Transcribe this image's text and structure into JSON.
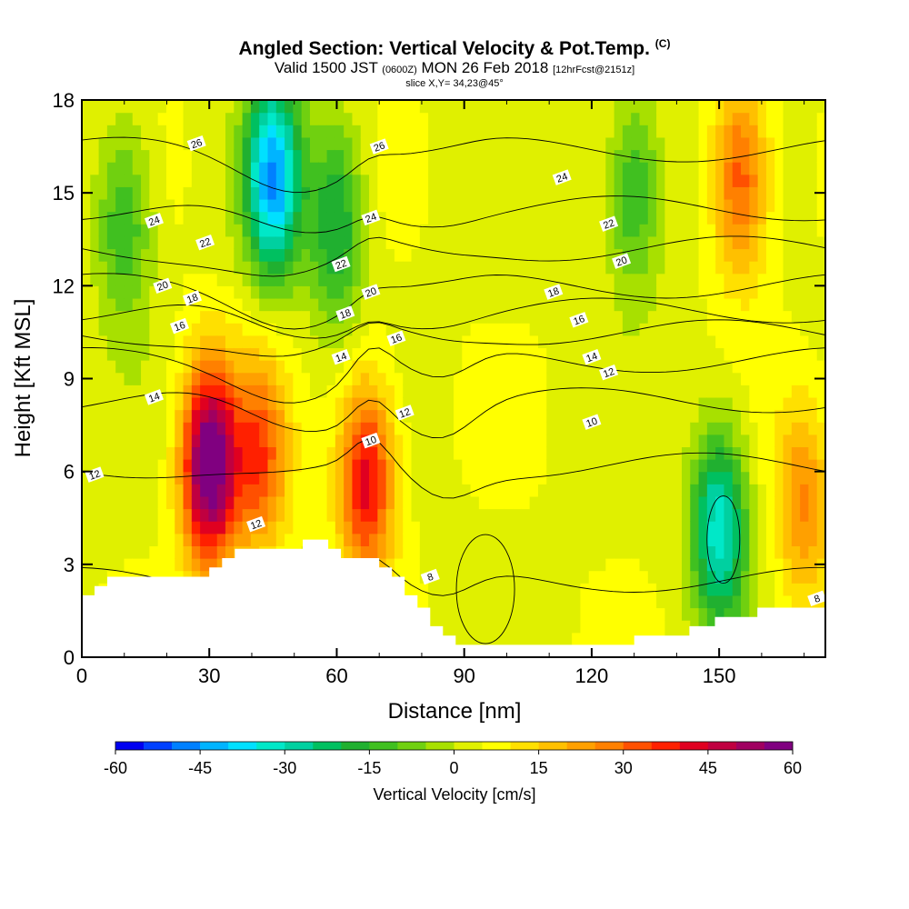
{
  "title": {
    "main": "Angled Section: Vertical Velocity & Pot.Temp.",
    "unit_tag": "(C)",
    "valid_a": "Valid 1500 JST ",
    "valid_z": "(0600Z)",
    "valid_b": " MON 26 Feb 2018 ",
    "fcst": "[12hrFcst@2151z]",
    "slice": "slice X,Y= 34,23@45°"
  },
  "chart_data": {
    "type": "heatmap",
    "xlabel": "Distance [nm]",
    "ylabel": "Height [Kft MSL]",
    "xlim": [
      0,
      175
    ],
    "ylim": [
      0,
      18
    ],
    "x_ticks": [
      0,
      30,
      60,
      90,
      120,
      150
    ],
    "y_ticks": [
      0,
      3,
      6,
      9,
      12,
      15,
      18
    ],
    "colorbar": {
      "title": "Vertical Velocity [cm/s]",
      "ticks": [
        -60,
        -45,
        -30,
        -15,
        0,
        15,
        30,
        45,
        60
      ],
      "levels": [
        -60,
        -55,
        -50,
        -45,
        -40,
        -35,
        -30,
        -25,
        -20,
        -15,
        -10,
        -5,
        0,
        5,
        10,
        15,
        20,
        25,
        30,
        35,
        40,
        45,
        50,
        55,
        60
      ],
      "colors": [
        "#0000f0",
        "#0040ff",
        "#0080ff",
        "#00b4ff",
        "#00e0ff",
        "#00e8c8",
        "#00d0a0",
        "#00c060",
        "#20b030",
        "#40c020",
        "#70d010",
        "#a8e000",
        "#e0f000",
        "#ffff00",
        "#ffe000",
        "#ffc000",
        "#ffa000",
        "#ff8000",
        "#ff5000",
        "#ff2000",
        "#e00020",
        "#c00040",
        "#a00060",
        "#800080"
      ]
    },
    "velocity_features": [
      {
        "x": 30,
        "z": 6.2,
        "value": 60
      },
      {
        "x": 42,
        "z": 6.5,
        "value": 28
      },
      {
        "x": 67,
        "z": 5.8,
        "value": 40
      },
      {
        "x": 45,
        "z": 15.5,
        "value": -48
      },
      {
        "x": 60,
        "z": 14,
        "value": -25
      },
      {
        "x": 150,
        "z": 4.2,
        "value": -38
      },
      {
        "x": 155,
        "z": 15.5,
        "value": 30
      },
      {
        "x": 130,
        "z": 15,
        "value": -20
      },
      {
        "x": 10,
        "z": 14,
        "value": -20
      },
      {
        "x": 170,
        "z": 5,
        "value": 22
      }
    ],
    "theta_labels": [
      {
        "x": 27,
        "z": 16.6,
        "text": "26"
      },
      {
        "x": 70,
        "z": 16.5,
        "text": "26"
      },
      {
        "x": 17,
        "z": 14.1,
        "text": "24"
      },
      {
        "x": 68,
        "z": 14.2,
        "text": "24"
      },
      {
        "x": 113,
        "z": 15.5,
        "text": "24"
      },
      {
        "x": 29,
        "z": 13.4,
        "text": "22"
      },
      {
        "x": 61,
        "z": 12.7,
        "text": "22"
      },
      {
        "x": 124,
        "z": 14,
        "text": "22"
      },
      {
        "x": 19,
        "z": 12,
        "text": "20"
      },
      {
        "x": 68,
        "z": 11.8,
        "text": "20"
      },
      {
        "x": 127,
        "z": 12.8,
        "text": "20"
      },
      {
        "x": 26,
        "z": 11.6,
        "text": "18"
      },
      {
        "x": 62,
        "z": 11.1,
        "text": "18"
      },
      {
        "x": 111,
        "z": 11.8,
        "text": "18"
      },
      {
        "x": 23,
        "z": 10.7,
        "text": "16"
      },
      {
        "x": 74,
        "z": 10.3,
        "text": "16"
      },
      {
        "x": 117,
        "z": 10.9,
        "text": "16"
      },
      {
        "x": 61,
        "z": 9.7,
        "text": "14"
      },
      {
        "x": 17,
        "z": 8.4,
        "text": "14"
      },
      {
        "x": 120,
        "z": 9.7,
        "text": "14"
      },
      {
        "x": 124,
        "z": 9.2,
        "text": "12"
      },
      {
        "x": 76,
        "z": 7.9,
        "text": "12"
      },
      {
        "x": 3,
        "z": 5.9,
        "text": "12"
      },
      {
        "x": 41,
        "z": 4.3,
        "text": "12"
      },
      {
        "x": 68,
        "z": 7,
        "text": "10"
      },
      {
        "x": 120,
        "z": 7.6,
        "text": "10"
      },
      {
        "x": 82,
        "z": 2.6,
        "text": "8"
      },
      {
        "x": 173,
        "z": 1.9,
        "text": "8"
      }
    ],
    "terrain": [
      [
        0,
        2
      ],
      [
        3,
        2
      ],
      [
        3,
        2.3
      ],
      [
        6,
        2.3
      ],
      [
        6,
        2.6
      ],
      [
        16,
        2.6
      ],
      [
        16,
        2.6
      ],
      [
        30,
        2.6
      ],
      [
        30,
        2.9
      ],
      [
        33,
        2.9
      ],
      [
        33,
        3.2
      ],
      [
        36,
        3.2
      ],
      [
        36,
        3.5
      ],
      [
        52,
        3.5
      ],
      [
        52,
        3.8
      ],
      [
        58,
        3.8
      ],
      [
        58,
        3.5
      ],
      [
        61,
        3.5
      ],
      [
        61,
        3.2
      ],
      [
        70,
        3.2
      ],
      [
        70,
        2.9
      ],
      [
        73,
        2.9
      ],
      [
        73,
        2.6
      ],
      [
        76,
        2.6
      ],
      [
        76,
        2
      ],
      [
        79,
        2
      ],
      [
        79,
        1.6
      ],
      [
        82,
        1.6
      ],
      [
        82,
        1
      ],
      [
        85,
        1
      ],
      [
        85,
        0.7
      ],
      [
        88,
        0.7
      ],
      [
        88,
        0.4
      ],
      [
        130,
        0.4
      ],
      [
        130,
        0.7
      ],
      [
        143,
        0.7
      ],
      [
        143,
        1
      ],
      [
        149,
        1
      ],
      [
        149,
        1.3
      ],
      [
        159,
        1.3
      ],
      [
        159,
        1.6
      ],
      [
        175,
        1.6
      ]
    ]
  }
}
